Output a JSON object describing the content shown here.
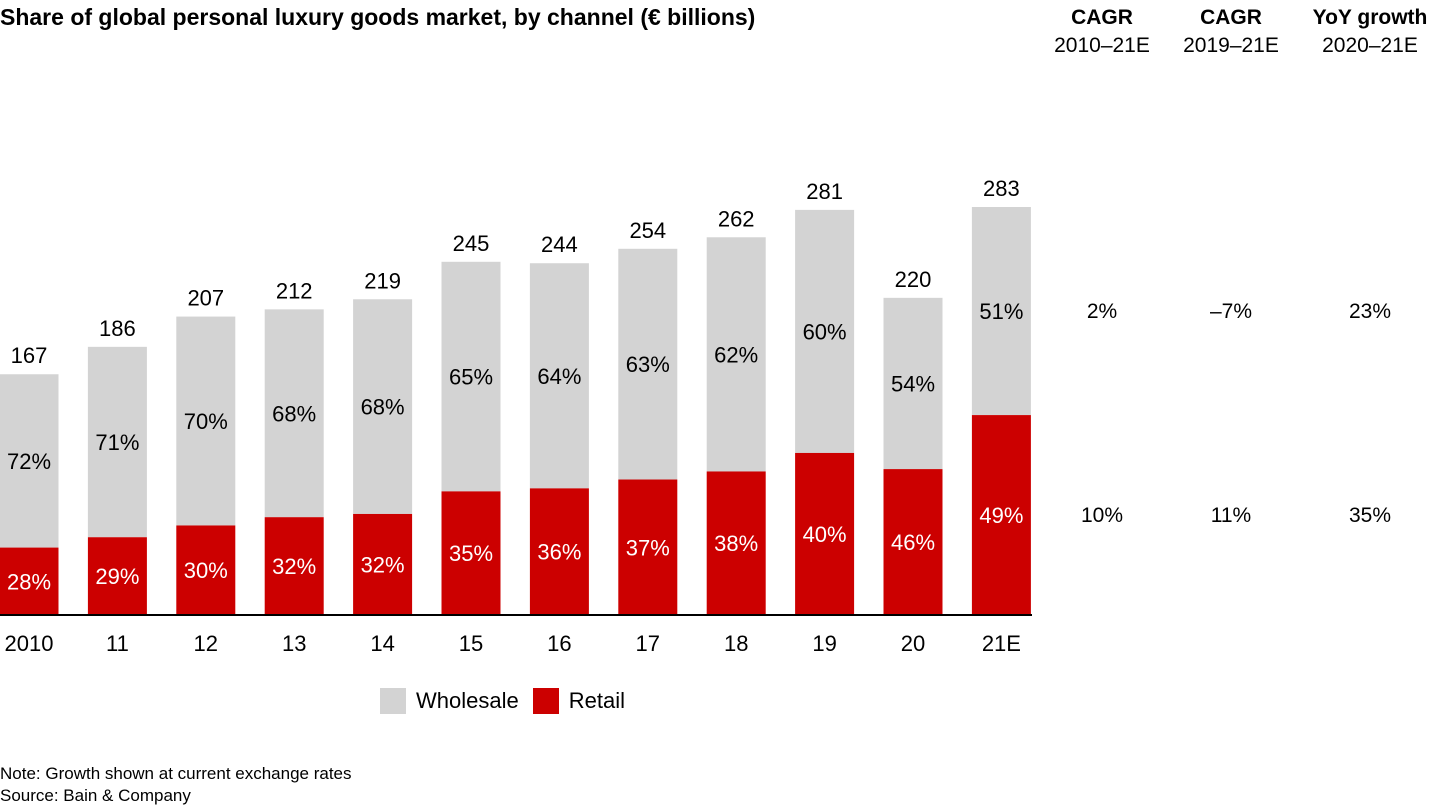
{
  "title": "Share of global personal luxury goods market, by channel (€ billions)",
  "growth_headers": [
    {
      "line1": "CAGR",
      "line2": "2010–21E"
    },
    {
      "line1": "CAGR",
      "line2": "2019–21E"
    },
    {
      "line1": "YoY growth",
      "line2": "2020–21E"
    }
  ],
  "growth_rows": {
    "wholesale": [
      "2%",
      "–7%",
      "23%"
    ],
    "retail": [
      "10%",
      "11%",
      "35%"
    ]
  },
  "legend": [
    {
      "label": "Wholesale",
      "color": "#d3d3d3"
    },
    {
      "label": "Retail",
      "color": "#cc0000"
    }
  ],
  "footer": {
    "note": "Note: Growth shown at current exchange rates",
    "source": "Source: Bain & Company"
  },
  "colors": {
    "wholesale": "#d3d3d3",
    "retail": "#cc0000",
    "axis": "#000000"
  },
  "chart_data": {
    "type": "bar",
    "stacked": true,
    "categories": [
      "2010",
      "11",
      "12",
      "13",
      "14",
      "15",
      "16",
      "17",
      "18",
      "19",
      "20",
      "21E"
    ],
    "totals": [
      167,
      186,
      207,
      212,
      219,
      245,
      244,
      254,
      262,
      281,
      220,
      283
    ],
    "series": [
      {
        "name": "Retail",
        "share_percent": [
          28,
          29,
          30,
          32,
          32,
          35,
          36,
          37,
          38,
          40,
          46,
          49
        ]
      },
      {
        "name": "Wholesale",
        "share_percent": [
          72,
          71,
          70,
          68,
          68,
          65,
          64,
          63,
          62,
          60,
          54,
          51
        ]
      }
    ],
    "ylim": [
      0,
      283
    ],
    "grid": false,
    "legend_position": "bottom"
  }
}
